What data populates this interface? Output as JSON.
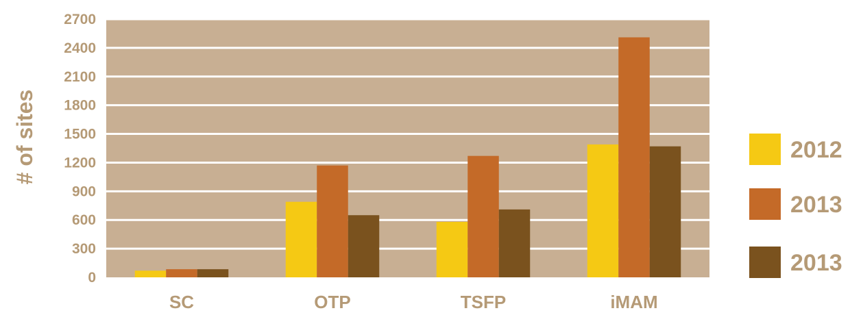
{
  "colors": {
    "plot_background": "#c8af93",
    "gridline": "#ffffff",
    "label_text": "#b59a76"
  },
  "chart_data": {
    "type": "bar",
    "title": "",
    "xlabel": "",
    "ylabel": "# of sites",
    "categories": [
      "SC",
      "OTP",
      "TSFP",
      "iMAM"
    ],
    "series": [
      {
        "name": "2012",
        "color": "#f5c914",
        "values": [
          70,
          790,
          580,
          1390
        ]
      },
      {
        "name": "2013",
        "color": "#c46a28",
        "values": [
          85,
          1170,
          1270,
          2510
        ]
      },
      {
        "name": "2013",
        "color": "#7a521e",
        "values": [
          85,
          650,
          710,
          1370
        ]
      }
    ],
    "ylim": [
      0,
      2700
    ],
    "yticks": [
      "0",
      "300",
      "600",
      "900",
      "1200",
      "1500",
      "1800",
      "2100",
      "2400",
      "2700"
    ],
    "grid": true,
    "legend_position": "right"
  }
}
